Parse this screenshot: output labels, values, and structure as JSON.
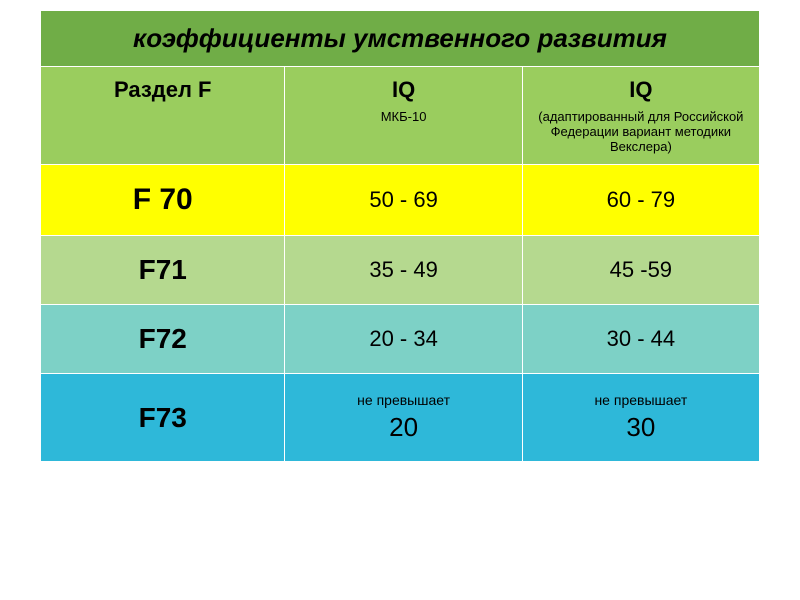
{
  "title": {
    "text": "коэффициенты умственного развития",
    "bg": "#70ad47",
    "color": "#000000",
    "fontsize": 26,
    "italic": true,
    "bold": true
  },
  "header": {
    "bg": "#9acd5e",
    "color": "#000000",
    "fontsize": 22,
    "sub_fontsize": 13,
    "cols": [
      {
        "main": "Раздел F",
        "sub": ""
      },
      {
        "main": "IQ",
        "sub": "МКБ-10"
      },
      {
        "main": "IQ",
        "sub": "(адаптированный для Российской Федерации вариант методики Векслера)"
      }
    ]
  },
  "rows": [
    {
      "label": "F 70",
      "c1": "50 - 69",
      "c2": "60 - 79",
      "bg": "#ffff00",
      "color": "#000000",
      "label_fontsize": 30,
      "cell_fontsize": 22
    },
    {
      "label": "F71",
      "c1": "35 - 49",
      "c2": "45 -59",
      "bg": "#b5d98f",
      "color": "#000000",
      "label_fontsize": 28,
      "cell_fontsize": 22
    },
    {
      "label": "F72",
      "c1": "20 - 34",
      "c2": "30 - 44",
      "bg": "#7dd1c6",
      "color": "#000000",
      "label_fontsize": 28,
      "cell_fontsize": 22
    },
    {
      "label": "F73",
      "c1_prefix": "не превышает",
      "c1": "20",
      "c2_prefix": "не превышает",
      "c2": "30",
      "bg": "#2eb8d9",
      "color": "#000000",
      "label_fontsize": 28,
      "cell_fontsize": 26,
      "prefix_fontsize": 14
    }
  ],
  "col_widths": [
    "34%",
    "33%",
    "33%"
  ],
  "border_color": "#ffffff"
}
